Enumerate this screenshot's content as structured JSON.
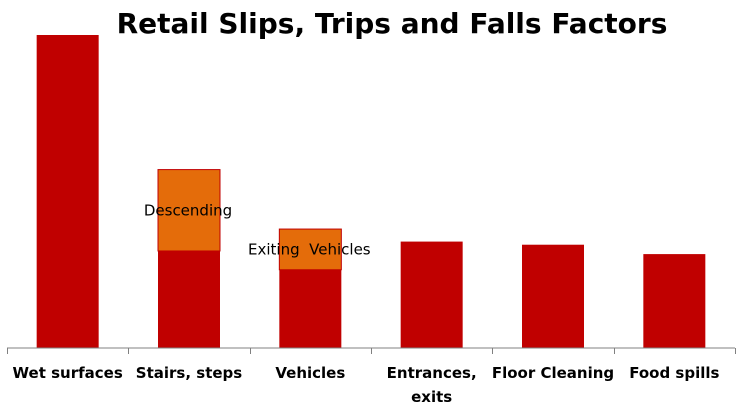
{
  "chart_data": {
    "type": "bar",
    "title": "Retail Slips, Trips and Falls Factors",
    "xlabel": "",
    "ylabel": "",
    "ylim": [
      0,
      100
    ],
    "grid": false,
    "legend": "none",
    "categories": [
      "Wet surfaces",
      "Stairs, steps",
      "Vehicles",
      "Entrances, exits",
      "Floor Cleaning",
      "Food spills"
    ],
    "category_lines": [
      [
        "Wet surfaces"
      ],
      [
        "Stairs, steps"
      ],
      [
        "Vehicles"
      ],
      [
        "Entrances,",
        "exits"
      ],
      [
        "Floor Cleaning"
      ],
      [
        "Food spills"
      ]
    ],
    "series": [
      {
        "values": [
          100,
          31,
          25,
          34,
          33,
          30
        ],
        "color": "#c00000"
      },
      {
        "values": [
          0,
          26,
          13,
          0,
          0,
          0
        ],
        "color": "#e46c0a"
      }
    ],
    "annotations": [
      {
        "category": "Stairs, steps",
        "text": "Descending"
      },
      {
        "category": "Vehicles",
        "text": "Exiting  Vehicles"
      }
    ],
    "colors": {
      "bar": "#c00000",
      "segment": "#e46c0a",
      "segment_border": "#c00000",
      "axis": "#808080"
    }
  }
}
